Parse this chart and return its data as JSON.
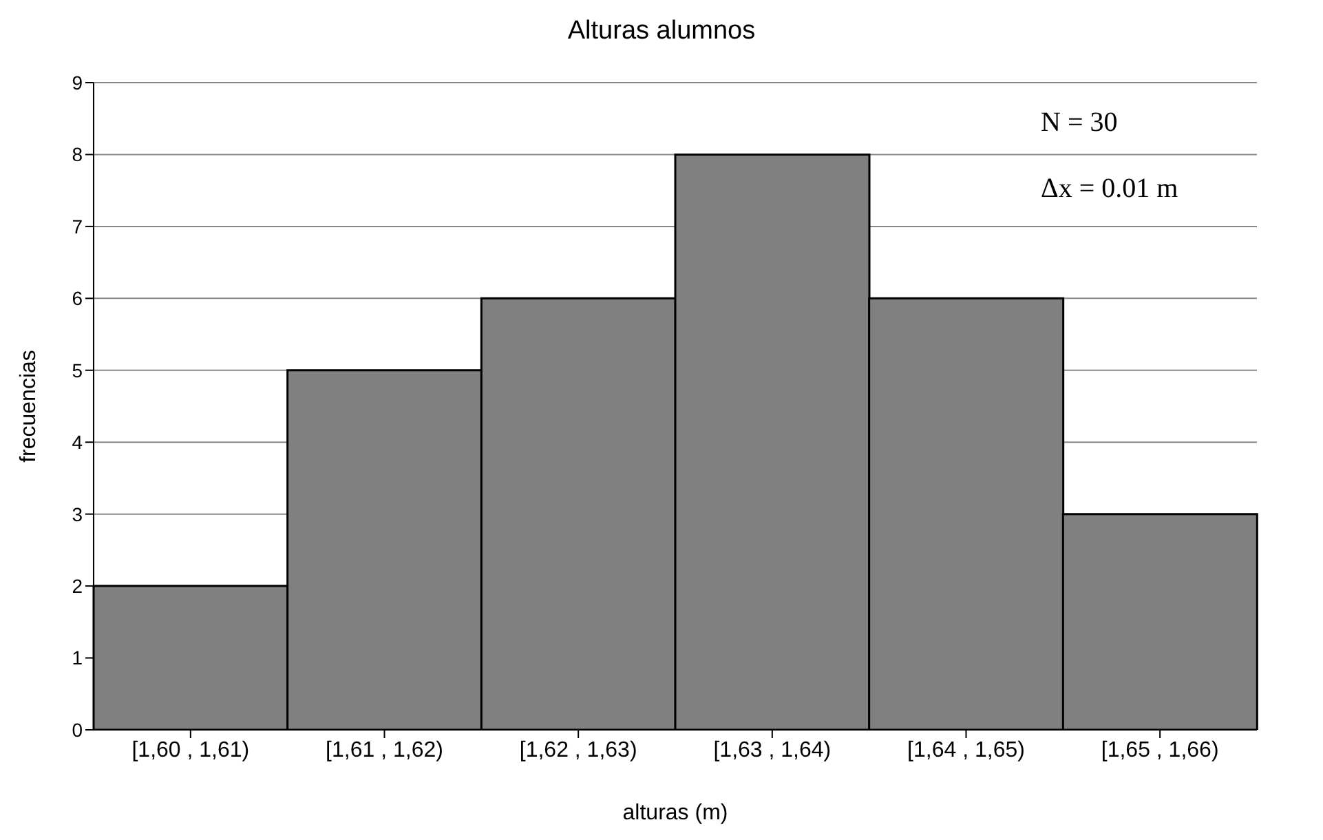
{
  "chart_data": {
    "type": "bar",
    "title": "Alturas alumnos",
    "xlabel": "alturas (m)",
    "ylabel": "frecuencias",
    "categories": [
      "[1,60 , 1,61)",
      "[1,61 , 1,62)",
      "[1,62 , 1,63)",
      "[1,63 , 1,64)",
      "[1,64 , 1,65)",
      "[1,65 , 1,66)"
    ],
    "values": [
      2,
      5,
      6,
      8,
      6,
      3
    ],
    "color": "#808080",
    "ylim": [
      0,
      9
    ],
    "yticks": [
      0,
      1,
      2,
      3,
      4,
      5,
      6,
      7,
      8,
      9
    ],
    "grid": "y",
    "annotations": [
      "N = 30",
      "Δx = 0.01 m"
    ]
  }
}
